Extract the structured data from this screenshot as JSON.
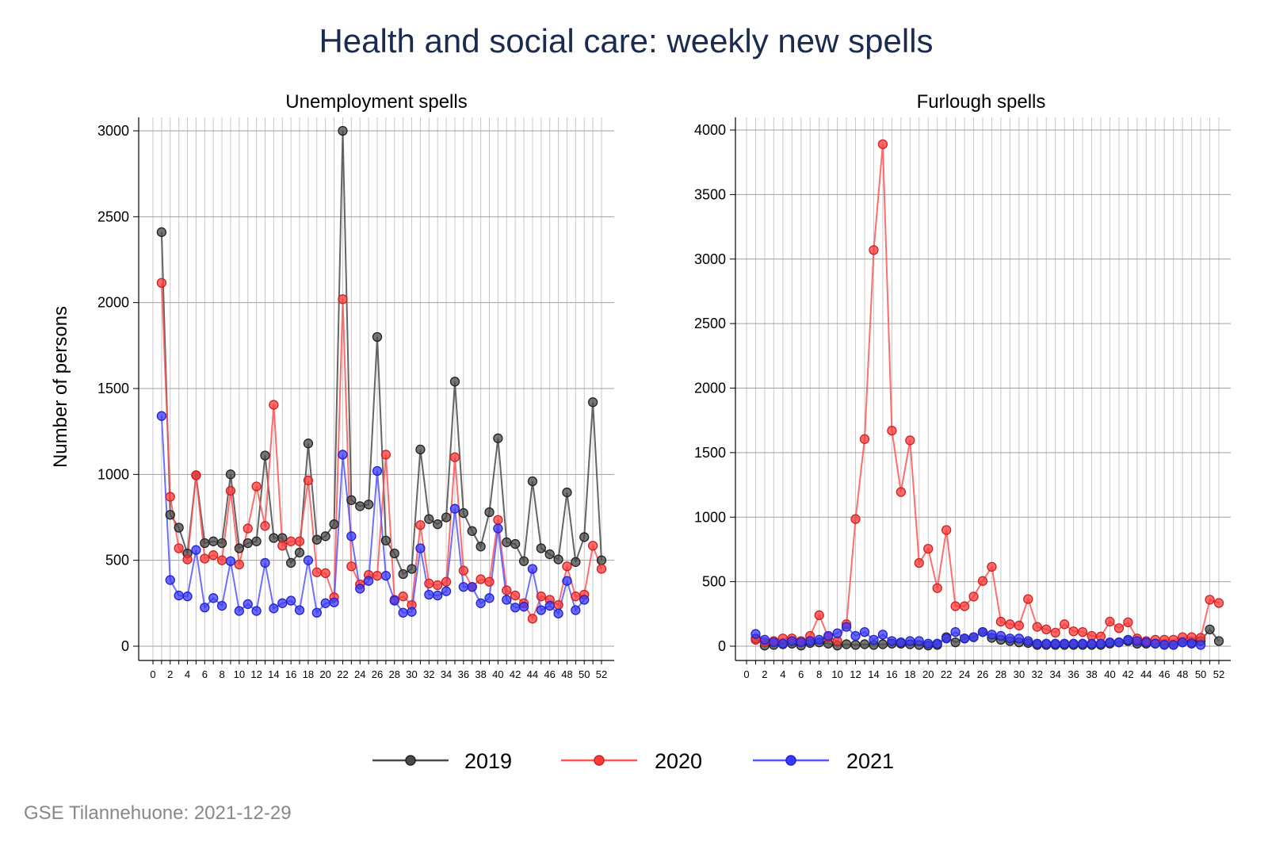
{
  "title": "Health and social care: weekly new spells",
  "ylabel": "Number of persons",
  "footer": "GSE Tilannehuone: 2021-12-29",
  "colors": {
    "2019": "#4a4a4a",
    "2020": "#ff3a3a",
    "2021": "#3a3aff"
  },
  "legend": {
    "s2019": "2019",
    "s2020": "2020",
    "s2021": "2021"
  },
  "chart_data": [
    {
      "type": "line",
      "title": "Unemployment spells",
      "ylabel": "Number of persons",
      "xlim": [
        0,
        52
      ],
      "ylim": [
        0,
        3000
      ],
      "xticks": [
        0,
        2,
        4,
        6,
        8,
        10,
        12,
        14,
        16,
        18,
        20,
        22,
        24,
        26,
        28,
        30,
        32,
        34,
        36,
        38,
        40,
        42,
        44,
        46,
        48,
        50,
        52
      ],
      "yticks": [
        0,
        500,
        1000,
        1500,
        2000,
        2500,
        3000
      ],
      "grid": true,
      "series": [
        {
          "name": "2019",
          "x": [
            1,
            2,
            3,
            4,
            5,
            6,
            7,
            8,
            9,
            10,
            11,
            12,
            13,
            14,
            15,
            16,
            17,
            18,
            19,
            20,
            21,
            22,
            23,
            24,
            25,
            26,
            27,
            28,
            29,
            30,
            31,
            32,
            33,
            34,
            35,
            36,
            37,
            38,
            39,
            40,
            41,
            42,
            43,
            44,
            45,
            46,
            47,
            48,
            49,
            50,
            51,
            52
          ],
          "values": [
            2410,
            765,
            690,
            540,
            995,
            600,
            610,
            600,
            1000,
            570,
            600,
            610,
            1110,
            630,
            630,
            485,
            545,
            1180,
            620,
            640,
            710,
            3000,
            850,
            815,
            825,
            1800,
            615,
            540,
            420,
            450,
            1145,
            740,
            710,
            750,
            1540,
            775,
            670,
            580,
            780,
            1210,
            605,
            595,
            495,
            960,
            570,
            535,
            505,
            895,
            490,
            635,
            1420,
            500
          ]
        },
        {
          "name": "2020",
          "x": [
            1,
            2,
            3,
            4,
            5,
            6,
            7,
            8,
            9,
            10,
            11,
            12,
            13,
            14,
            15,
            16,
            17,
            18,
            19,
            20,
            21,
            22,
            23,
            24,
            25,
            26,
            27,
            28,
            29,
            30,
            31,
            32,
            33,
            34,
            35,
            36,
            37,
            38,
            39,
            40,
            41,
            42,
            43,
            44,
            45,
            46,
            47,
            48,
            49,
            50,
            51,
            52
          ],
          "values": [
            2115,
            870,
            570,
            505,
            995,
            510,
            530,
            500,
            905,
            475,
            685,
            930,
            700,
            1405,
            585,
            610,
            610,
            965,
            430,
            425,
            285,
            2020,
            465,
            360,
            415,
            410,
            1115,
            270,
            290,
            240,
            705,
            365,
            355,
            375,
            1100,
            440,
            345,
            390,
            375,
            735,
            325,
            295,
            250,
            160,
            290,
            270,
            240,
            465,
            290,
            300,
            585,
            450
          ]
        },
        {
          "name": "2021",
          "x": [
            1,
            2,
            3,
            4,
            5,
            6,
            7,
            8,
            9,
            10,
            11,
            12,
            13,
            14,
            15,
            16,
            17,
            18,
            19,
            20,
            21,
            22,
            23,
            24,
            25,
            26,
            27,
            28,
            29,
            30,
            31,
            32,
            33,
            34,
            35,
            36,
            37,
            38,
            39,
            40,
            41,
            42,
            43,
            44,
            45,
            46,
            47,
            48,
            49,
            50
          ],
          "values": [
            1340,
            385,
            295,
            290,
            560,
            225,
            280,
            235,
            495,
            205,
            245,
            205,
            485,
            220,
            250,
            265,
            210,
            500,
            195,
            250,
            255,
            1115,
            640,
            335,
            380,
            1020,
            410,
            265,
            195,
            200,
            570,
            300,
            295,
            320,
            800,
            345,
            345,
            250,
            280,
            685,
            270,
            225,
            230,
            450,
            210,
            235,
            190,
            380,
            210,
            270
          ]
        }
      ]
    },
    {
      "type": "line",
      "title": "Furlough spells",
      "xlim": [
        0,
        52
      ],
      "ylim": [
        0,
        4000
      ],
      "xticks": [
        0,
        2,
        4,
        6,
        8,
        10,
        12,
        14,
        16,
        18,
        20,
        22,
        24,
        26,
        28,
        30,
        32,
        34,
        36,
        38,
        40,
        42,
        44,
        46,
        48,
        50,
        52
      ],
      "yticks": [
        0,
        500,
        1000,
        1500,
        2000,
        2500,
        3000,
        3500,
        4000
      ],
      "grid": true,
      "series": [
        {
          "name": "2019",
          "x": [
            1,
            2,
            3,
            4,
            5,
            6,
            7,
            8,
            9,
            10,
            11,
            12,
            13,
            14,
            15,
            16,
            17,
            18,
            19,
            20,
            21,
            22,
            23,
            24,
            25,
            26,
            27,
            28,
            29,
            30,
            31,
            32,
            33,
            34,
            35,
            36,
            37,
            38,
            39,
            40,
            41,
            42,
            43,
            44,
            45,
            46,
            47,
            48,
            49,
            50,
            51,
            52
          ],
          "values": [
            60,
            5,
            10,
            15,
            20,
            5,
            25,
            30,
            20,
            5,
            15,
            10,
            15,
            10,
            15,
            20,
            20,
            15,
            10,
            5,
            10,
            70,
            30,
            60,
            70,
            110,
            65,
            50,
            40,
            30,
            25,
            10,
            10,
            10,
            10,
            10,
            10,
            10,
            10,
            20,
            30,
            40,
            20,
            20,
            20,
            15,
            10,
            30,
            30,
            40,
            130,
            40
          ]
        },
        {
          "name": "2020",
          "x": [
            1,
            2,
            3,
            4,
            5,
            6,
            7,
            8,
            9,
            10,
            11,
            12,
            13,
            14,
            15,
            16,
            17,
            18,
            19,
            20,
            21,
            22,
            23,
            24,
            25,
            26,
            27,
            28,
            29,
            30,
            31,
            32,
            33,
            34,
            35,
            36,
            37,
            38,
            39,
            40,
            41,
            42,
            43,
            44,
            45,
            46,
            47,
            48,
            49,
            50,
            51,
            52
          ],
          "values": [
            50,
            30,
            40,
            60,
            60,
            40,
            80,
            240,
            70,
            40,
            170,
            985,
            1605,
            3070,
            3890,
            1670,
            1195,
            1595,
            645,
            755,
            450,
            900,
            310,
            310,
            385,
            505,
            615,
            190,
            170,
            160,
            365,
            150,
            130,
            105,
            170,
            115,
            110,
            80,
            75,
            190,
            140,
            185,
            60,
            40,
            50,
            50,
            50,
            70,
            70,
            65,
            360,
            335
          ]
        },
        {
          "name": "2021",
          "x": [
            1,
            2,
            3,
            4,
            5,
            6,
            7,
            8,
            9,
            10,
            11,
            12,
            13,
            14,
            15,
            16,
            17,
            18,
            19,
            20,
            21,
            22,
            23,
            24,
            25,
            26,
            27,
            28,
            29,
            30,
            31,
            32,
            33,
            34,
            35,
            36,
            37,
            38,
            39,
            40,
            41,
            42,
            43,
            44,
            45,
            46,
            47,
            48,
            49,
            50
          ],
          "values": [
            95,
            50,
            30,
            20,
            40,
            30,
            40,
            50,
            80,
            100,
            150,
            80,
            110,
            50,
            90,
            40,
            30,
            40,
            40,
            20,
            20,
            60,
            110,
            60,
            70,
            110,
            90,
            80,
            60,
            60,
            40,
            20,
            20,
            20,
            20,
            20,
            20,
            20,
            20,
            30,
            30,
            50,
            40,
            30,
            20,
            10,
            10,
            30,
            20,
            10
          ]
        }
      ]
    }
  ]
}
